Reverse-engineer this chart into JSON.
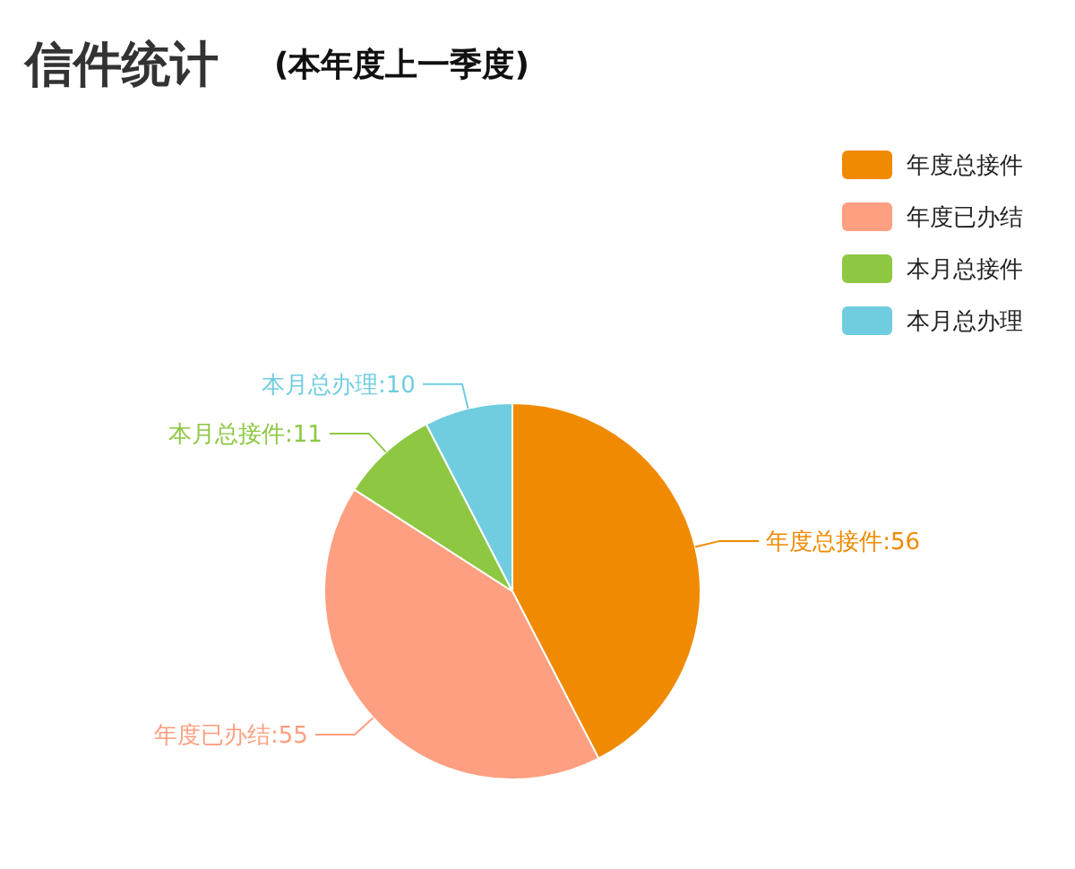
{
  "chart_data": {
    "type": "pie",
    "title": "信件统计",
    "subtitle": "(本年度上一季度)",
    "categories": [
      "年度总接件",
      "年度已办结",
      "本月总接件",
      "本月总办理"
    ],
    "values": [
      56,
      55,
      11,
      10
    ],
    "value_labels": [
      "年度总接件:56",
      "年度已办结:55",
      "本月总接件:11",
      "本月总办理:10"
    ],
    "colors": [
      "#f08a00",
      "#fd9f80",
      "#8ec843",
      "#70cde0"
    ],
    "legend": "top right"
  }
}
